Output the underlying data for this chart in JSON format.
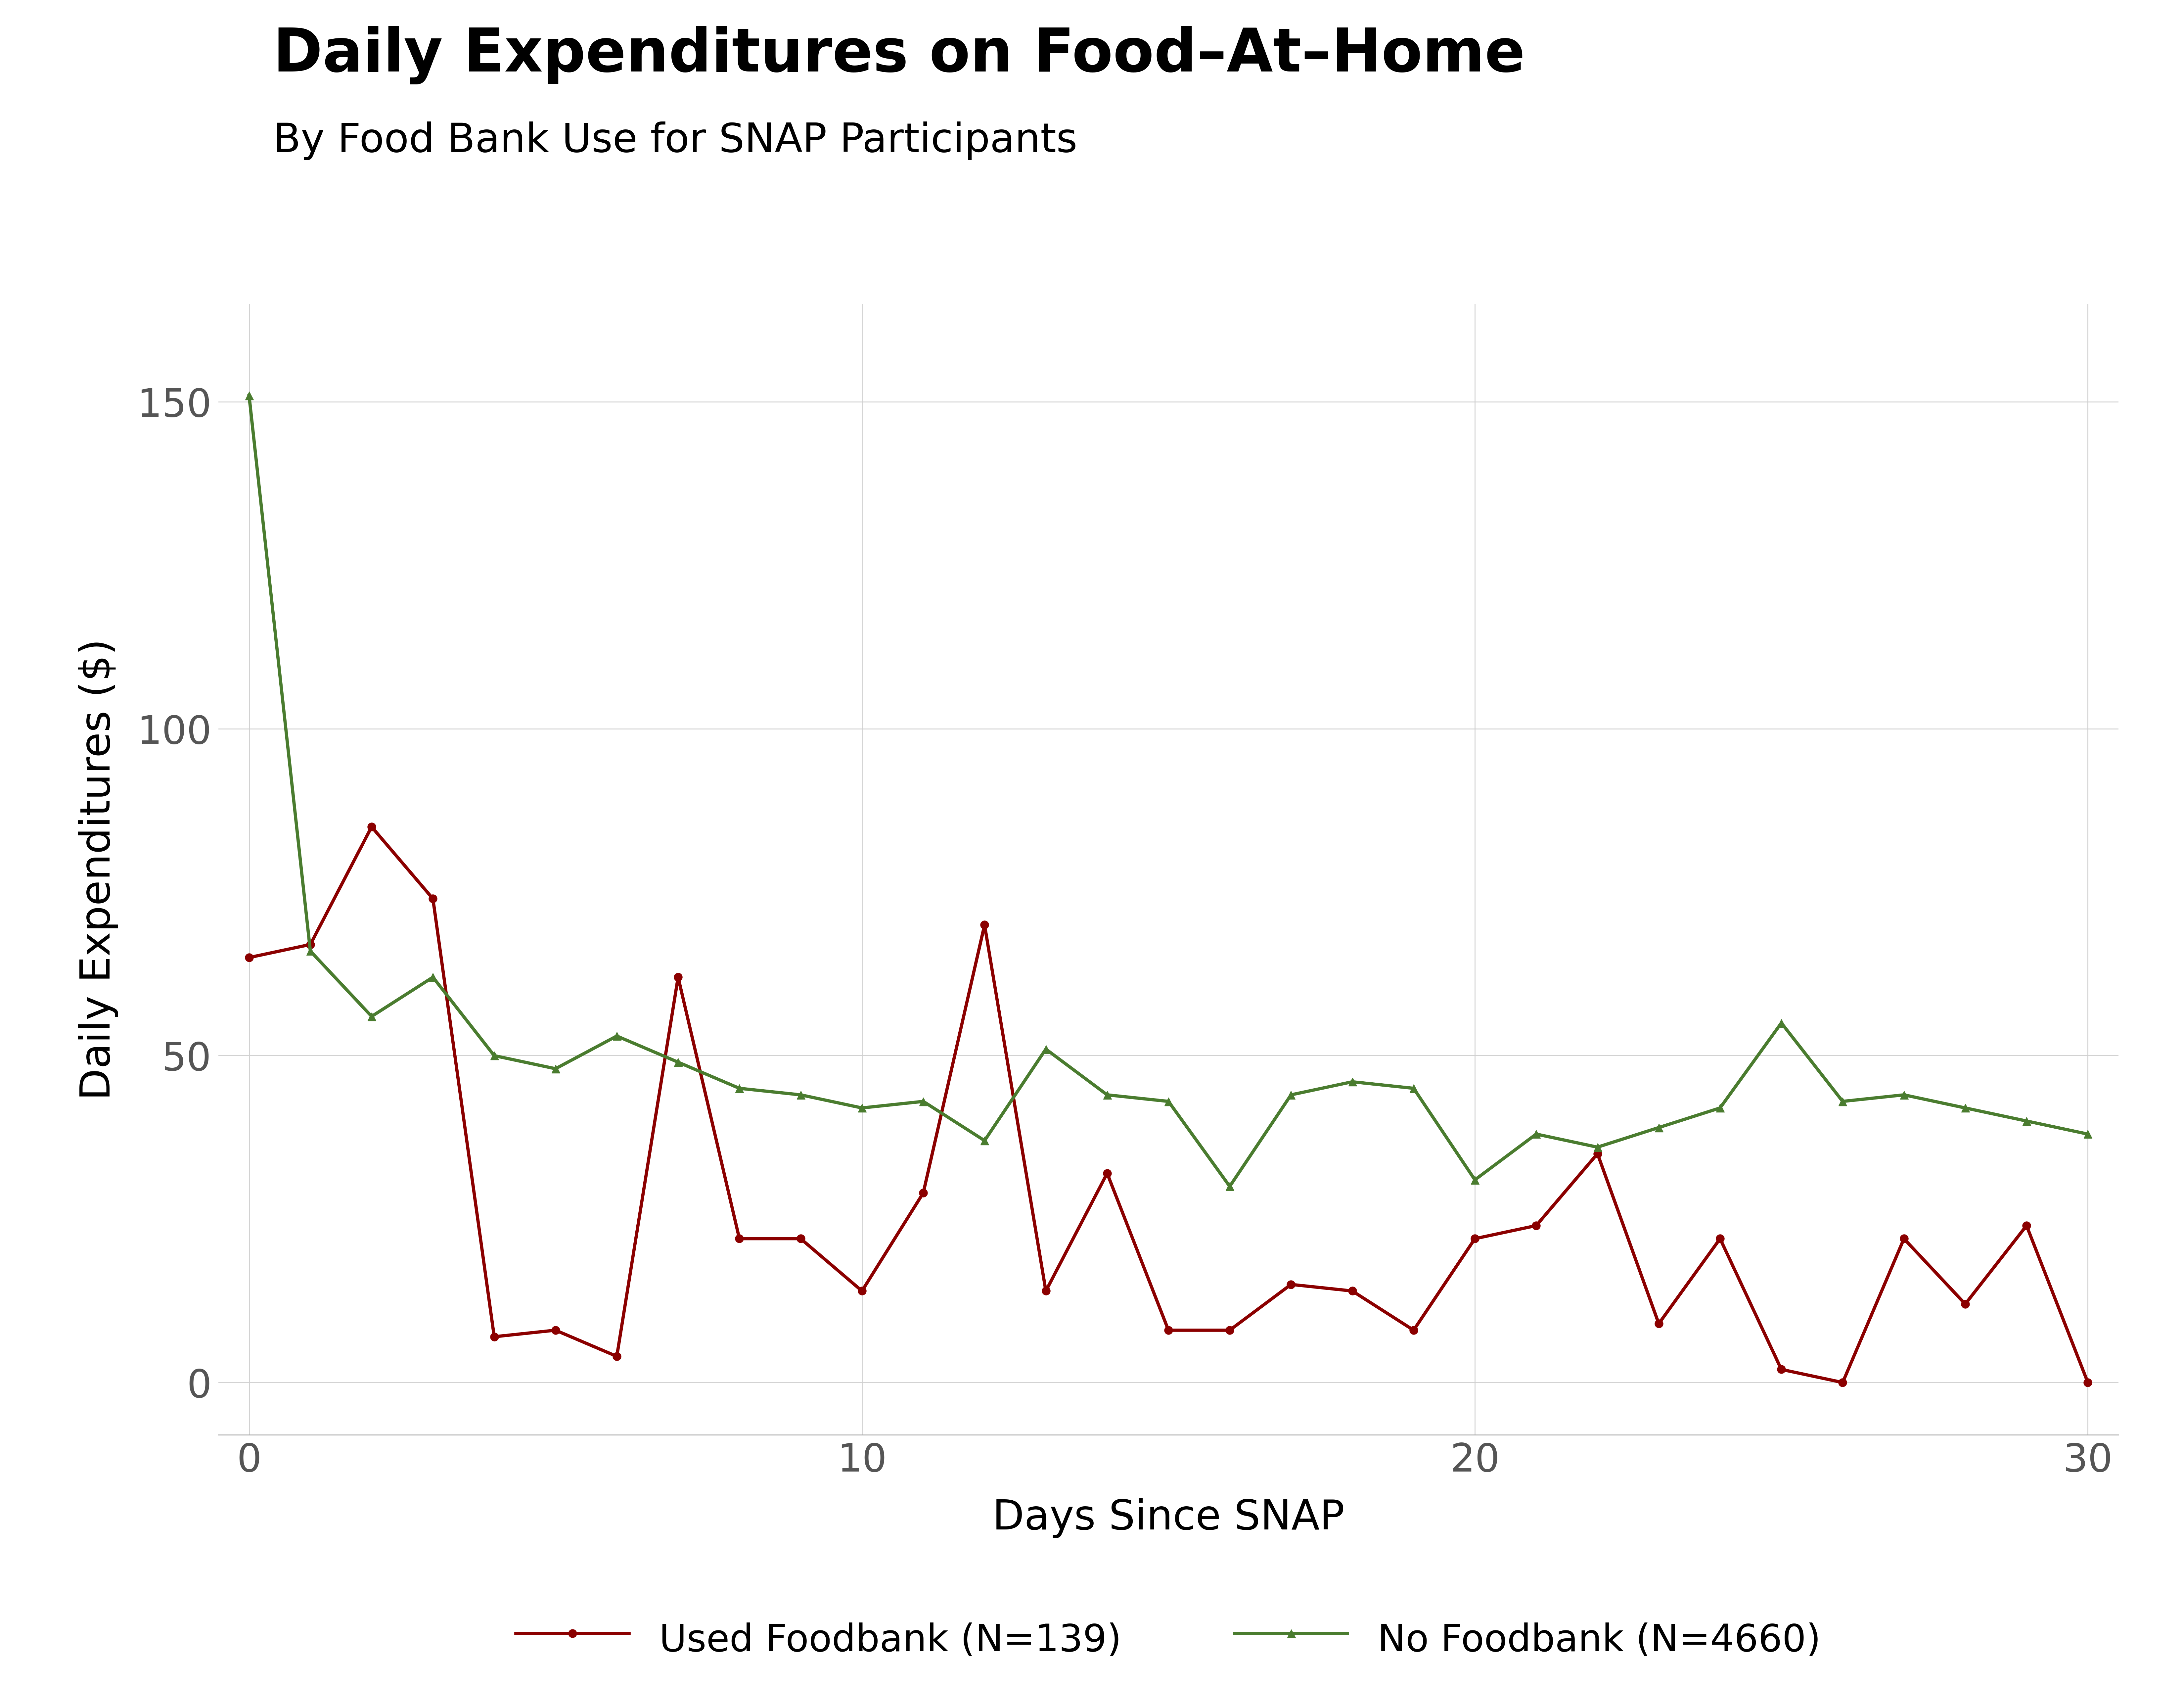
{
  "title": "Daily Expenditures on Food–At–Home",
  "subtitle": "By Food Bank Use for SNAP Participants",
  "xlabel": "Days Since SNAP",
  "ylabel": "Daily Expenditures ($)",
  "xlim": [
    -0.5,
    30.5
  ],
  "ylim": [
    -8,
    165
  ],
  "yticks": [
    0,
    50,
    100,
    150
  ],
  "xticks": [
    0,
    10,
    20,
    30
  ],
  "foodbank_x": [
    0,
    1,
    2,
    3,
    4,
    5,
    6,
    7,
    8,
    9,
    10,
    11,
    12,
    13,
    14,
    15,
    16,
    17,
    18,
    19,
    20,
    21,
    22,
    23,
    24,
    25,
    26,
    27,
    28,
    29,
    30
  ],
  "foodbank_y": [
    65,
    67,
    85,
    74,
    7,
    8,
    4,
    62,
    22,
    22,
    14,
    29,
    70,
    14,
    32,
    8,
    8,
    15,
    14,
    8,
    22,
    24,
    35,
    9,
    22,
    2,
    0,
    22,
    12,
    24,
    0
  ],
  "nofoodbank_x": [
    0,
    1,
    2,
    3,
    4,
    5,
    6,
    7,
    8,
    9,
    10,
    11,
    12,
    13,
    14,
    15,
    16,
    17,
    18,
    19,
    20,
    21,
    22,
    23,
    24,
    25,
    26,
    27,
    28,
    29,
    30
  ],
  "nofoodbank_y": [
    151,
    66,
    56,
    62,
    50,
    48,
    53,
    49,
    45,
    44,
    42,
    43,
    37,
    51,
    44,
    43,
    30,
    44,
    46,
    45,
    31,
    38,
    36,
    39,
    42,
    55,
    43,
    44,
    42,
    40,
    38
  ],
  "foodbank_color": "#8B0000",
  "nofoodbank_color": "#4a7c2f",
  "foodbank_label": "Used Foodbank (N=139)",
  "nofoodbank_label": "No Foodbank (N=4660)",
  "line_width": 7,
  "marker_size": 18,
  "title_fontsize": 130,
  "subtitle_fontsize": 88,
  "label_fontsize": 90,
  "tick_fontsize": 85,
  "legend_fontsize": 82,
  "background_color": "#ffffff",
  "grid_color": "#d0d0d0",
  "tick_color": "#555555",
  "spine_color": "#aaaaaa"
}
